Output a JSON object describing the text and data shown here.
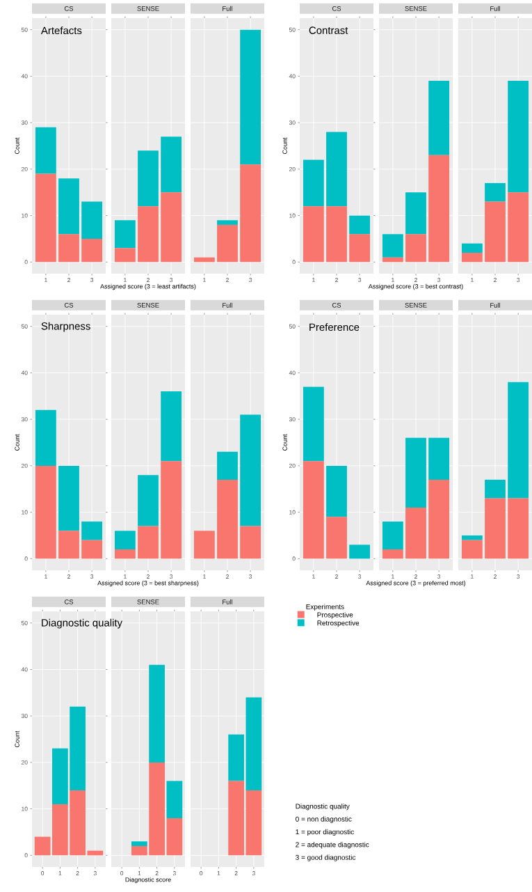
{
  "chart_data": [
    {
      "type": "bar",
      "stacked": true,
      "title": "CS",
      "ylabel": "Count",
      "annotations": [
        "Artefacts"
      ],
      "categories": [
        "1",
        "2",
        "3"
      ],
      "ylim": [
        -2.5,
        52.5
      ],
      "yticks": [
        0,
        10,
        20,
        30,
        40,
        50
      ],
      "grid": true,
      "series": [
        {
          "color": "#f8766d",
          "values": [
            19,
            6,
            5
          ]
        },
        {
          "color": "#00bfc4",
          "values": [
            10,
            12,
            8
          ]
        }
      ]
    },
    {
      "type": "bar",
      "stacked": true,
      "title": "SENSE",
      "xlabel": "Assigned score (3 = least artifacts)",
      "categories": [
        "1",
        "2",
        "3"
      ],
      "ylim": [
        -2.5,
        52.5
      ],
      "yticks": [
        0,
        10,
        20,
        30,
        40,
        50
      ],
      "grid": true,
      "tick_labels": "x",
      "series": [
        {
          "color": "#f8766d",
          "values": [
            3,
            12,
            15
          ]
        },
        {
          "color": "#00bfc4",
          "values": [
            6,
            12,
            12
          ]
        }
      ]
    },
    {
      "type": "bar",
      "stacked": true,
      "title": "Full",
      "categories": [
        "1",
        "2",
        "3"
      ],
      "ylim": [
        -2.5,
        52.5
      ],
      "yticks": [
        0,
        10,
        20,
        30,
        40,
        50
      ],
      "grid": true,
      "tick_labels": "x",
      "series": [
        {
          "color": "#f8766d",
          "values": [
            1,
            8,
            21
          ]
        },
        {
          "color": "#00bfc4",
          "values": [
            0,
            1,
            29
          ]
        }
      ]
    },
    {
      "type": "bar",
      "stacked": true,
      "title": "CS",
      "ylabel": "Count",
      "annotations": [
        "Contrast"
      ],
      "categories": [
        "1",
        "2",
        "3"
      ],
      "ylim": [
        -2.5,
        52.5
      ],
      "yticks": [
        0,
        10,
        20,
        30,
        40,
        50
      ],
      "grid": true,
      "series": [
        {
          "color": "#f8766d",
          "values": [
            12,
            12,
            6
          ]
        },
        {
          "color": "#00bfc4",
          "values": [
            10,
            16,
            4
          ]
        }
      ]
    },
    {
      "type": "bar",
      "stacked": true,
      "title": "SENSE",
      "xlabel": "Assigned score (3 = best contrast)",
      "categories": [
        "1",
        "2",
        "3"
      ],
      "ylim": [
        -2.5,
        52.5
      ],
      "yticks": [
        0,
        10,
        20,
        30,
        40,
        50
      ],
      "grid": true,
      "tick_labels": "x",
      "series": [
        {
          "color": "#f8766d",
          "values": [
            1,
            6,
            23
          ]
        },
        {
          "color": "#00bfc4",
          "values": [
            5,
            9,
            16
          ]
        }
      ]
    },
    {
      "type": "bar",
      "stacked": true,
      "title": "Full",
      "categories": [
        "1",
        "2",
        "3"
      ],
      "ylim": [
        -2.5,
        52.5
      ],
      "yticks": [
        0,
        10,
        20,
        30,
        40,
        50
      ],
      "grid": true,
      "tick_labels": "x",
      "series": [
        {
          "color": "#f8766d",
          "values": [
            2,
            13,
            15
          ]
        },
        {
          "color": "#00bfc4",
          "values": [
            2,
            4,
            24
          ]
        }
      ]
    },
    {
      "type": "bar",
      "stacked": true,
      "title": "CS",
      "ylabel": "Count",
      "annotations": [
        "Sharpness"
      ],
      "categories": [
        "1",
        "2",
        "3"
      ],
      "ylim": [
        -2.5,
        52.5
      ],
      "yticks": [
        0,
        10,
        20,
        30,
        40,
        50
      ],
      "grid": true,
      "series": [
        {
          "color": "#f8766d",
          "values": [
            20,
            6,
            4
          ]
        },
        {
          "color": "#00bfc4",
          "values": [
            12,
            14,
            4
          ]
        }
      ]
    },
    {
      "type": "bar",
      "stacked": true,
      "title": "SENSE",
      "xlabel": "Assigned score (3 = best sharpness)",
      "categories": [
        "1",
        "2",
        "3"
      ],
      "ylim": [
        -2.5,
        52.5
      ],
      "yticks": [
        0,
        10,
        20,
        30,
        40,
        50
      ],
      "grid": true,
      "tick_labels": "x",
      "series": [
        {
          "color": "#f8766d",
          "values": [
            2,
            7,
            21
          ]
        },
        {
          "color": "#00bfc4",
          "values": [
            4,
            11,
            15
          ]
        }
      ]
    },
    {
      "type": "bar",
      "stacked": true,
      "title": "Full",
      "categories": [
        "1",
        "2",
        "3"
      ],
      "ylim": [
        -2.5,
        52.5
      ],
      "yticks": [
        0,
        10,
        20,
        30,
        40,
        50
      ],
      "grid": true,
      "tick_labels": "x",
      "series": [
        {
          "color": "#f8766d",
          "values": [
            6,
            17,
            7
          ]
        },
        {
          "color": "#00bfc4",
          "values": [
            0,
            6,
            24
          ]
        }
      ]
    },
    {
      "type": "bar",
      "stacked": true,
      "title": "CS",
      "ylabel": "Count",
      "annotations": [
        "Preference"
      ],
      "categories": [
        "1",
        "2",
        "3"
      ],
      "ylim": [
        -2.5,
        52.5
      ],
      "yticks": [
        0,
        10,
        20,
        30,
        40,
        50
      ],
      "grid": true,
      "series": [
        {
          "color": "#f8766d",
          "values": [
            21,
            9,
            0
          ]
        },
        {
          "color": "#00bfc4",
          "values": [
            16,
            11,
            3
          ]
        }
      ]
    },
    {
      "type": "bar",
      "stacked": true,
      "title": "SENSE",
      "xlabel": "Assigned score (3 = preferred most)",
      "categories": [
        "1",
        "2",
        "3"
      ],
      "ylim": [
        -2.5,
        52.5
      ],
      "yticks": [
        0,
        10,
        20,
        30,
        40,
        50
      ],
      "grid": true,
      "tick_labels": "x",
      "series": [
        {
          "color": "#f8766d",
          "values": [
            2,
            11,
            17
          ]
        },
        {
          "color": "#00bfc4",
          "values": [
            6,
            15,
            9
          ]
        }
      ]
    },
    {
      "type": "bar",
      "stacked": true,
      "title": "Full",
      "categories": [
        "1",
        "2",
        "3"
      ],
      "ylim": [
        -2.5,
        52.5
      ],
      "yticks": [
        0,
        10,
        20,
        30,
        40,
        50
      ],
      "grid": true,
      "tick_labels": "x",
      "series": [
        {
          "color": "#f8766d",
          "values": [
            4,
            13,
            13
          ]
        },
        {
          "color": "#00bfc4",
          "values": [
            1,
            4,
            25
          ]
        }
      ]
    },
    {
      "type": "bar",
      "stacked": true,
      "title": "CS",
      "ylabel": "Count",
      "annotations": [
        "Diagnostic quality"
      ],
      "categories": [
        "0",
        "1",
        "2",
        "3"
      ],
      "ylim": [
        -2.5,
        52.5
      ],
      "yticks": [
        0,
        10,
        20,
        30,
        40,
        50
      ],
      "grid": true,
      "series": [
        {
          "color": "#f8766d",
          "values": [
            4,
            11,
            14,
            1
          ]
        },
        {
          "color": "#00bfc4",
          "values": [
            0,
            12,
            18,
            0
          ]
        }
      ]
    },
    {
      "type": "bar",
      "stacked": true,
      "title": "SENSE",
      "xlabel": "Diagnostic score",
      "categories": [
        "0",
        "1",
        "2",
        "3"
      ],
      "ylim": [
        -2.5,
        52.5
      ],
      "yticks": [
        0,
        10,
        20,
        30,
        40,
        50
      ],
      "grid": true,
      "tick_labels": "x",
      "series": [
        {
          "color": "#f8766d",
          "values": [
            0,
            2,
            20,
            8
          ]
        },
        {
          "color": "#00bfc4",
          "values": [
            0,
            1,
            21,
            8
          ]
        }
      ]
    },
    {
      "type": "bar",
      "stacked": true,
      "title": "Full",
      "categories": [
        "0",
        "1",
        "2",
        "3"
      ],
      "ylim": [
        -2.5,
        52.5
      ],
      "yticks": [
        0,
        10,
        20,
        30,
        40,
        50
      ],
      "grid": true,
      "tick_labels": "x",
      "legend": "right",
      "legend_title": "Experiments",
      "annotations": [
        "Diagnostic quality",
        "0 = non diagnostic",
        "1 = poor diagnostic",
        "2 = adequate diagnostic",
        "3 = good diagnostic"
      ],
      "series": [
        {
          "name": "Prospective",
          "color": "#f8766d",
          "values": [
            0,
            0,
            16,
            14
          ]
        },
        {
          "name": "Retrospective",
          "color": "#00bfc4",
          "values": [
            0,
            0,
            10,
            20
          ]
        }
      ]
    }
  ]
}
